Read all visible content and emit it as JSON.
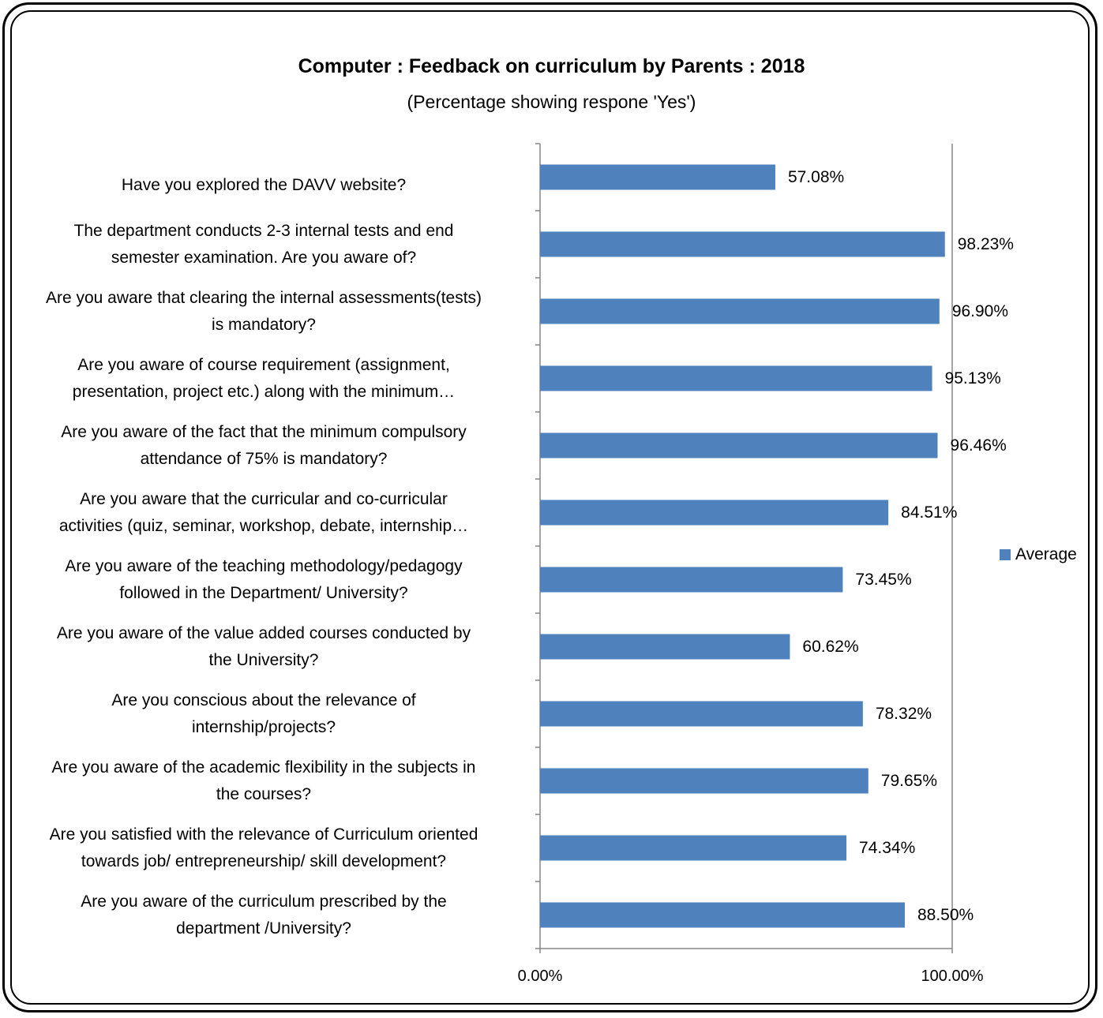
{
  "chart_data": {
    "type": "bar",
    "orientation": "horizontal",
    "title": "Computer : Feedback on curriculum by Parents : 2018",
    "subtitle": "(Percentage showing respone 'Yes')",
    "categories": [
      "Have you explored the DAVV website?",
      "The department conducts 2-3 internal tests and end\nsemester examination. Are you aware of?",
      "Are you aware that clearing the internal assessments(tests)\nis mandatory?",
      "Are you aware of course requirement (assignment,\npresentation, project etc.) along with the minimum…",
      "Are you aware of the fact that the minimum compulsory\nattendance of 75% is mandatory?",
      "Are you aware that the curricular and co-curricular\nactivities (quiz, seminar, workshop, debate, internship…",
      "Are you aware of the teaching methodology/pedagogy\nfollowed in the Department/ University?",
      "Are you aware of the value added courses conducted by\nthe University?",
      "Are you conscious about the relevance of\ninternship/projects?",
      "Are you aware of the academic flexibility in the subjects in\nthe courses?",
      "Are you satisfied with the relevance of Curriculum oriented\ntowards job/ entrepreneurship/ skill development?",
      "Are you aware of the curriculum prescribed by the\ndepartment /University?"
    ],
    "series": [
      {
        "name": "Average",
        "values": [
          57.08,
          98.23,
          96.9,
          95.13,
          96.46,
          84.51,
          73.45,
          60.62,
          78.32,
          79.65,
          74.34,
          88.5
        ],
        "labels": [
          "57.08%",
          "98.23%",
          "96.90%",
          "95.13%",
          "96.46%",
          "84.51%",
          "73.45%",
          "60.62%",
          "78.32%",
          "79.65%",
          "74.34%",
          "88.50%"
        ]
      }
    ],
    "xlim": [
      0,
      100
    ],
    "x_ticks": [
      "0.00%",
      "100.00%"
    ],
    "color": "#4f81bd",
    "grid": false,
    "legend_position": "right"
  }
}
